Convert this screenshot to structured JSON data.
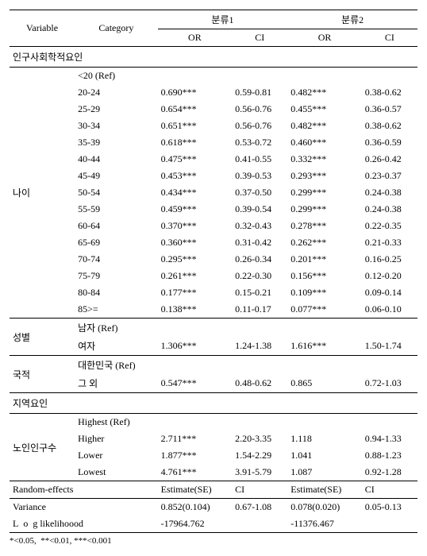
{
  "headers": {
    "variable": "Variable",
    "category": "Category",
    "group1": "분류1",
    "group2": "분류2",
    "or": "OR",
    "ci": "CI"
  },
  "sections": {
    "demo": "인구사회학적요인",
    "region": "지역요인"
  },
  "age": {
    "label": "나이",
    "rows": [
      {
        "cat": "<20 (Ref)",
        "or1": "",
        "ci1": "",
        "or2": "",
        "ci2": ""
      },
      {
        "cat": "20-24",
        "or1": "0.690***",
        "ci1": "0.59-0.81",
        "or2": "0.482***",
        "ci2": "0.38-0.62"
      },
      {
        "cat": "25-29",
        "or1": "0.654***",
        "ci1": "0.56-0.76",
        "or2": "0.455***",
        "ci2": "0.36-0.57"
      },
      {
        "cat": "30-34",
        "or1": "0.651***",
        "ci1": "0.56-0.76",
        "or2": "0.482***",
        "ci2": "0.38-0.62"
      },
      {
        "cat": "35-39",
        "or1": "0.618***",
        "ci1": "0.53-0.72",
        "or2": "0.460***",
        "ci2": "0.36-0.59"
      },
      {
        "cat": "40-44",
        "or1": "0.475***",
        "ci1": "0.41-0.55",
        "or2": "0.332***",
        "ci2": "0.26-0.42"
      },
      {
        "cat": "45-49",
        "or1": "0.453***",
        "ci1": "0.39-0.53",
        "or2": "0.293***",
        "ci2": "0.23-0.37"
      },
      {
        "cat": "50-54",
        "or1": "0.434***",
        "ci1": "0.37-0.50",
        "or2": "0.299***",
        "ci2": "0.24-0.38"
      },
      {
        "cat": "55-59",
        "or1": "0.459***",
        "ci1": "0.39-0.54",
        "or2": "0.299***",
        "ci2": "0.24-0.38"
      },
      {
        "cat": "60-64",
        "or1": "0.370***",
        "ci1": "0.32-0.43",
        "or2": "0.278***",
        "ci2": "0.22-0.35"
      },
      {
        "cat": "65-69",
        "or1": "0.360***",
        "ci1": "0.31-0.42",
        "or2": "0.262***",
        "ci2": "0.21-0.33"
      },
      {
        "cat": "70-74",
        "or1": "0.295***",
        "ci1": "0.26-0.34",
        "or2": "0.201***",
        "ci2": "0.16-0.25"
      },
      {
        "cat": "75-79",
        "or1": "0.261***",
        "ci1": "0.22-0.30",
        "or2": "0.156***",
        "ci2": "0.12-0.20"
      },
      {
        "cat": "80-84",
        "or1": "0.177***",
        "ci1": "0.15-0.21",
        "or2": "0.109***",
        "ci2": "0.09-0.14"
      },
      {
        "cat": "85>=",
        "or1": "0.138***",
        "ci1": "0.11-0.17",
        "or2": "0.077***",
        "ci2": "0.06-0.10"
      }
    ]
  },
  "gender": {
    "label": "성별",
    "rows": [
      {
        "cat": "남자 (Ref)",
        "or1": "",
        "ci1": "",
        "or2": "",
        "ci2": ""
      },
      {
        "cat": "여자",
        "or1": "1.306***",
        "ci1": "1.24-1.38",
        "or2": "1.616***",
        "ci2": "1.50-1.74"
      }
    ]
  },
  "nationality": {
    "label": "국적",
    "rows": [
      {
        "cat": "대한민국 (Ref)",
        "or1": "",
        "ci1": "",
        "or2": "",
        "ci2": ""
      },
      {
        "cat": "그 외",
        "or1": "0.547***",
        "ci1": "0.48-0.62",
        "or2": "0.865",
        "ci2": "0.72-1.03"
      }
    ]
  },
  "elderly": {
    "label": "노인인구수",
    "rows": [
      {
        "cat": "Highest (Ref)",
        "or1": "",
        "ci1": "",
        "or2": "",
        "ci2": ""
      },
      {
        "cat": "Higher",
        "or1": "2.711***",
        "ci1": "2.20-3.35",
        "or2": "1.118",
        "ci2": "0.94-1.33"
      },
      {
        "cat": "Lower",
        "or1": "1.877***",
        "ci1": "1.54-2.29",
        "or2": "1.041",
        "ci2": "0.88-1.23"
      },
      {
        "cat": "Lowest",
        "or1": "4.761***",
        "ci1": "3.91-5.79",
        "or2": "1.087",
        "ci2": "0.92-1.28"
      }
    ]
  },
  "random_effects": {
    "label": "Random-effects",
    "est_label": "Estimate(SE)",
    "ci_label": "CI"
  },
  "variance": {
    "label": "Variance",
    "est1": "0.852(0.104)",
    "ci1": "0.67-1.08",
    "est2": "0.078(0.020)",
    "ci2": "0.05-0.13"
  },
  "loglik": {
    "label": "L  o  g likelihoood",
    "val1": "-17964.762",
    "val2": "-11376.467"
  },
  "footnote": "*<0.05,  **<0.01, ***<0.001"
}
